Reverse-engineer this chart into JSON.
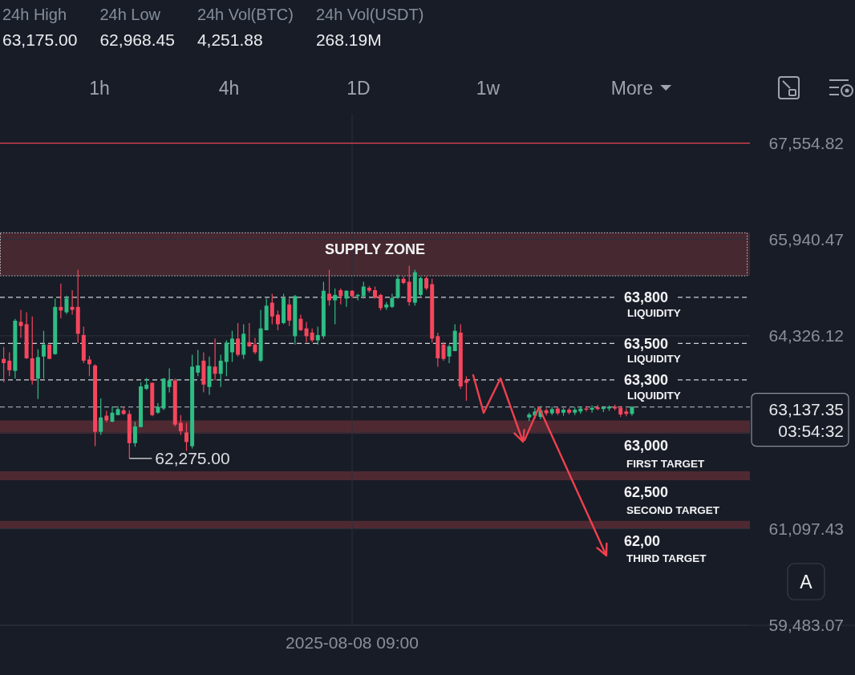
{
  "chart_data": [
    {
      "type": "other",
      "annotations": [
        "24h High",
        "24h Low",
        "24h Vol(BTC)",
        "24h Vol(USDT)",
        "63,175.00",
        "62,968.45",
        "4,251.88",
        "268.19M"
      ]
    },
    {
      "type": "other",
      "annotations": [
        "1h",
        "4h",
        "1D",
        "1w",
        "More"
      ]
    },
    {
      "type": "candlestick",
      "categories": [
        null,
        null,
        null,
        null,
        null,
        null,
        null,
        null,
        null,
        null,
        null,
        null,
        null,
        null,
        null,
        null,
        null,
        null,
        null,
        null,
        null,
        null,
        null,
        null,
        null,
        null,
        null,
        null,
        null,
        null,
        null,
        null,
        null,
        null,
        null,
        null,
        null,
        null,
        null,
        null,
        null,
        null,
        null,
        null,
        null,
        null,
        null,
        null,
        null,
        null,
        null,
        null,
        null,
        null,
        null,
        null,
        null,
        null,
        null,
        null,
        null,
        "2025-08-08 09:00",
        null,
        null,
        null,
        null,
        null,
        null,
        null,
        null,
        null,
        null,
        null,
        null,
        null,
        null,
        null,
        null,
        null,
        null,
        null,
        null,
        null,
        null,
        null,
        null,
        null,
        null,
        null,
        null,
        null,
        null,
        null,
        null,
        null,
        null,
        null,
        null,
        null,
        null,
        null,
        null,
        null,
        null,
        null,
        null,
        null,
        null,
        null,
        null,
        null,
        null,
        null,
        null,
        null,
        null,
        null,
        null,
        null,
        null,
        null,
        null,
        null,
        null,
        null,
        null,
        null,
        null,
        null,
        null,
        null
      ],
      "ohlc": [
        [
          63940,
          64140,
          63550,
          63870
        ],
        [
          63910,
          64050,
          63650,
          63750
        ],
        [
          63740,
          64610,
          63610,
          64580
        ],
        [
          64560,
          64760,
          64290,
          64490
        ],
        [
          64520,
          64720,
          63940,
          63950
        ],
        [
          63950,
          64650,
          63510,
          63580
        ],
        [
          63610,
          64100,
          63270,
          63970
        ],
        [
          63980,
          64410,
          63610,
          64180
        ],
        [
          64180,
          64180,
          63940,
          63940
        ],
        [
          64020,
          64950,
          64010,
          64810
        ],
        [
          64810,
          65200,
          64620,
          64750
        ],
        [
          64720,
          65000,
          64690,
          64950
        ],
        [
          64810,
          65090,
          64680,
          64760
        ],
        [
          64810,
          65430,
          64210,
          64360
        ],
        [
          64340,
          64480,
          63870,
          63910
        ],
        [
          63930,
          63990,
          63650,
          63850
        ],
        [
          63830,
          63850,
          62480,
          62720
        ],
        [
          62720,
          63280,
          62670,
          62960
        ],
        [
          62990,
          63070,
          62880,
          62910
        ],
        [
          62890,
          63140,
          62880,
          63040
        ],
        [
          63000,
          63150,
          63000,
          63100
        ],
        [
          63080,
          63140,
          63000,
          63020
        ],
        [
          63020,
          63080,
          62275,
          62530
        ],
        [
          62530,
          62890,
          62470,
          62810
        ],
        [
          62800,
          63550,
          62800,
          63480
        ],
        [
          63440,
          63620,
          63420,
          63510
        ],
        [
          63540,
          63540,
          62980,
          63000
        ],
        [
          63040,
          63200,
          63020,
          63140
        ],
        [
          63110,
          63620,
          63080,
          63610
        ],
        [
          63470,
          63780,
          63380,
          63580
        ],
        [
          63580,
          63610,
          62810,
          62840
        ],
        [
          62870,
          63000,
          62670,
          62730
        ],
        [
          62710,
          62870,
          62400,
          62550
        ],
        [
          62480,
          64010,
          62440,
          63810
        ],
        [
          63710,
          64090,
          63650,
          63830
        ],
        [
          63910,
          64050,
          63380,
          63510
        ],
        [
          63470,
          63980,
          63340,
          63820
        ],
        [
          63810,
          64280,
          63580,
          63690
        ],
        [
          63690,
          64010,
          63470,
          63910
        ],
        [
          63890,
          64250,
          63650,
          64210
        ],
        [
          64050,
          64410,
          63890,
          64280
        ],
        [
          64280,
          64540,
          63980,
          64010
        ],
        [
          64010,
          64520,
          63940,
          64360
        ],
        [
          64220,
          64540,
          64140,
          64150
        ],
        [
          64180,
          64290,
          64020,
          64050
        ],
        [
          63910,
          64760,
          63890,
          64450
        ],
        [
          64420,
          64950,
          64420,
          64830
        ],
        [
          64880,
          65030,
          64520,
          64650
        ],
        [
          64680,
          64750,
          64420,
          64520
        ],
        [
          64540,
          65030,
          64520,
          64960
        ],
        [
          64850,
          64950,
          64490,
          64580
        ],
        [
          64320,
          65010,
          64180,
          64990
        ],
        [
          64610,
          64680,
          64410,
          64420
        ],
        [
          64450,
          64560,
          64220,
          64320
        ],
        [
          64380,
          64450,
          64220,
          64250
        ],
        [
          64250,
          64480,
          64180,
          64340
        ],
        [
          64320,
          65230,
          64280,
          65080
        ],
        [
          65030,
          65430,
          64830,
          64920
        ],
        [
          64920,
          65120,
          64520,
          65010
        ],
        [
          65090,
          65120,
          64850,
          64990
        ],
        [
          64950,
          65090,
          64810,
          65080
        ],
        [
          65080,
          65090,
          64960,
          64990
        ],
        [
          64990,
          65030,
          64920,
          65010
        ],
        [
          64990,
          65230,
          64950,
          65150
        ],
        [
          65130,
          65160,
          65050,
          65080
        ],
        [
          65090,
          65150,
          64950,
          64960
        ],
        [
          65010,
          65030,
          64750,
          64790
        ],
        [
          64800,
          64890,
          64760,
          64850
        ],
        [
          64810,
          65030,
          64790,
          64960
        ],
        [
          64960,
          65350,
          64950,
          65280
        ],
        [
          65280,
          65320,
          65190,
          65210
        ],
        [
          65230,
          65500,
          64830,
          64890
        ],
        [
          64880,
          65430,
          64830,
          65390
        ],
        [
          65010,
          65320,
          64990,
          65290
        ],
        [
          65290,
          65320,
          65090,
          65120
        ],
        [
          65190,
          65280,
          64210,
          64280
        ],
        [
          64320,
          64380,
          63810,
          63950
        ],
        [
          64180,
          64220,
          63910,
          63940
        ],
        [
          63980,
          64180,
          63870,
          64150
        ],
        [
          64070,
          64520,
          64070,
          64410
        ],
        [
          64380,
          64520,
          63440,
          63480
        ],
        [
          63580,
          63650,
          63240,
          63540
        ],
        null,
        null,
        null,
        null,
        null,
        null,
        null,
        null,
        null,
        null,
        [
          62960,
          63040,
          62900,
          63010
        ],
        [
          62990,
          63120,
          62940,
          63060
        ],
        [
          62970,
          63150,
          62930,
          63080
        ],
        [
          63080,
          63110,
          62990,
          63030
        ],
        [
          63030,
          63140,
          63000,
          63100
        ],
        [
          63110,
          63140,
          63000,
          63030
        ],
        [
          63040,
          63120,
          62990,
          63090
        ],
        [
          63090,
          63120,
          63010,
          63040
        ],
        [
          63040,
          63130,
          63000,
          63090
        ],
        [
          63060,
          63140,
          63020,
          63110
        ],
        [
          63110,
          63150,
          63060,
          63090
        ],
        [
          63090,
          63160,
          63040,
          63120
        ],
        [
          63130,
          63170,
          63080,
          63100
        ],
        [
          63100,
          63150,
          63050,
          63130
        ],
        [
          63110,
          63160,
          63070,
          63140
        ],
        [
          63140,
          63175,
          63080,
          63110
        ],
        [
          63120,
          63150,
          62970,
          63010
        ],
        [
          63060,
          63110,
          62980,
          63020
        ],
        [
          63020,
          63150,
          62990,
          63137.35
        ],
        null,
        null,
        null,
        null,
        null,
        null,
        null,
        null,
        null,
        null,
        null,
        null,
        null,
        null,
        null,
        null,
        null,
        null,
        null,
        null
      ],
      "colors": [
        "#f6465d",
        "#f6465d",
        "#2ebd85",
        "#f6465d",
        "#f6465d",
        "#f6465d",
        "#2ebd85",
        "#2ebd85",
        "#f6465d",
        "#2ebd85",
        "#f6465d",
        "#2ebd85",
        "#f6465d",
        "#f6465d",
        "#f6465d",
        "#f6465d",
        "#f6465d",
        "#2ebd85",
        "#f6465d",
        "#2ebd85",
        "#2ebd85",
        "#f6465d",
        "#f6465d",
        "#2ebd85",
        "#2ebd85",
        "#2ebd85",
        "#f6465d",
        "#2ebd85",
        "#2ebd85",
        "#2ebd85",
        "#f6465d",
        "#f6465d",
        "#f6465d",
        "#2ebd85",
        "#2ebd85",
        "#f6465d",
        "#2ebd85",
        "#f6465d",
        "#2ebd85",
        "#2ebd85",
        "#2ebd85",
        "#f6465d",
        "#2ebd85",
        "#f6465d",
        "#f6465d",
        "#2ebd85",
        "#2ebd85",
        "#f6465d",
        "#f6465d",
        "#2ebd85",
        "#f6465d",
        "#2ebd85",
        "#f6465d",
        "#f6465d",
        "#f6465d",
        "#2ebd85",
        "#2ebd85",
        "#f6465d",
        "#2ebd85",
        "#f6465d",
        "#2ebd85",
        "#f6465d",
        "#2ebd85",
        "#2ebd85",
        "#f6465d",
        "#f6465d",
        "#f6465d",
        "#2ebd85",
        "#2ebd85",
        "#2ebd85",
        "#f6465d",
        "#f6465d",
        "#2ebd85",
        "#2ebd85",
        "#f6465d",
        "#f6465d",
        "#f6465d",
        "#f6465d",
        "#2ebd85",
        "#2ebd85",
        "#f6465d",
        "#f6465d",
        null,
        null,
        null,
        null,
        null,
        null,
        null,
        null,
        null,
        null,
        "#2ebd85",
        "#2ebd85",
        "#2ebd85",
        "#f6465d",
        "#2ebd85",
        "#f6465d",
        "#2ebd85",
        "#f6465d",
        "#2ebd85",
        "#2ebd85",
        "#f6465d",
        "#2ebd85",
        "#f6465d",
        "#2ebd85",
        "#2ebd85",
        "#f6465d",
        "#f6465d",
        "#f6465d",
        "#2ebd85",
        null,
        null,
        null,
        null,
        null,
        null,
        null,
        null,
        null,
        null,
        null,
        null,
        null,
        null,
        null,
        null,
        null,
        null,
        null,
        null
      ],
      "value_labels": [
        null,
        null,
        null,
        null,
        null,
        null,
        null,
        null,
        null,
        null,
        null,
        null,
        null,
        null,
        null,
        null,
        null,
        null,
        null,
        null,
        null,
        null,
        "62,275.00",
        null,
        null,
        null,
        null,
        null,
        null,
        null,
        null,
        null,
        null,
        null,
        null,
        null,
        null,
        null,
        null,
        null,
        null,
        null,
        null,
        null,
        null,
        null,
        null,
        null,
        null,
        null,
        null,
        null,
        null,
        null,
        null,
        null,
        null,
        null,
        null,
        null,
        null,
        null,
        null,
        null,
        null,
        null,
        null,
        null,
        null,
        null,
        null,
        null,
        null,
        null,
        null,
        null,
        null,
        null,
        null,
        null,
        null,
        null,
        null,
        null,
        null,
        null,
        null,
        null,
        null,
        null,
        null,
        null,
        null,
        null,
        null,
        null,
        null,
        null,
        null,
        null,
        null,
        null,
        null,
        null,
        null,
        null,
        null,
        null,
        null,
        null,
        null,
        null,
        null,
        null,
        null,
        null,
        null,
        null,
        null,
        null,
        null,
        null,
        null,
        null,
        null,
        null,
        null,
        null,
        null,
        null,
        null
      ],
      "ylim": [
        59483.07,
        68040
      ],
      "yticks": [
        {
          "value": 59483.07,
          "label": "59,483.07"
        },
        {
          "value": 61097.43,
          "label": "61,097.43"
        },
        {
          "value": 62711.78,
          "label": null
        },
        {
          "value": 64326.12,
          "label": "64,326.12"
        },
        {
          "value": 65940.47,
          "label": "65,940.47"
        },
        {
          "value": 67554.82,
          "label": "67,554.82"
        }
      ],
      "grid": true,
      "bands": [
        {
          "axis": "y",
          "from": 65330,
          "to": 66050,
          "label": "SUPPLY ZONE",
          "color": "#452830"
        },
        {
          "axis": "y",
          "from": 62690,
          "to": 62910,
          "label": "63,000\nFIRST TARGET",
          "color": "#4f2932"
        },
        {
          "axis": "y",
          "from": 61910,
          "to": 62060,
          "label": "62,500\nSECOND TARGET",
          "color": "#4f2932"
        },
        {
          "axis": "y",
          "from": 61100,
          "to": 61230,
          "label": "62,00\nTHIRD TARGET",
          "color": "#4f2932"
        }
      ],
      "ref_lines": [
        {
          "axis": "y",
          "value": 67550,
          "color": "#e8414f",
          "line_style": "solid"
        },
        {
          "axis": "y",
          "value": 64970,
          "label": "63,800\nLIQUIDITY",
          "color": "#cfd2d8",
          "line_style": "dashed"
        },
        {
          "axis": "y",
          "value": 64200,
          "label": "63,500\nLIQUIDITY",
          "color": "#cfd2d8",
          "line_style": "dashed"
        },
        {
          "axis": "y",
          "value": 63590,
          "label": "63,300\nLIQUIDITY",
          "color": "#cfd2d8",
          "line_style": "dashed"
        },
        {
          "axis": "y",
          "value": 63137.35,
          "label": "63,137.35\n03:54:32",
          "color": "#9aa0aa",
          "line_style": "dashed"
        }
      ],
      "annotations": [
        "A"
      ]
    }
  ]
}
